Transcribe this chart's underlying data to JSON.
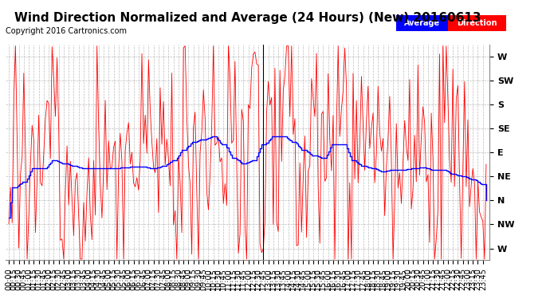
{
  "title": "Wind Direction Normalized and Average (24 Hours) (New) 20160613",
  "copyright": "Copyright 2016 Cartronics.com",
  "ytick_labels": [
    "W",
    "SW",
    "S",
    "SE",
    "E",
    "NE",
    "N",
    "NW",
    "W"
  ],
  "ytick_values": [
    360,
    315,
    270,
    225,
    180,
    135,
    90,
    45,
    0
  ],
  "ylim": [
    -22,
    382
  ],
  "background_color": "#ffffff",
  "grid_color": "#bbbbbb",
  "red_color": "#ff0000",
  "blue_color": "#0000ff",
  "black_color": "#000000",
  "legend_average_bg": "#0000ff",
  "legend_direction_bg": "#ff0000",
  "legend_text_color": "#ffffff",
  "title_fontsize": 11,
  "copyright_fontsize": 7,
  "axis_fontsize": 7,
  "n_points": 288
}
